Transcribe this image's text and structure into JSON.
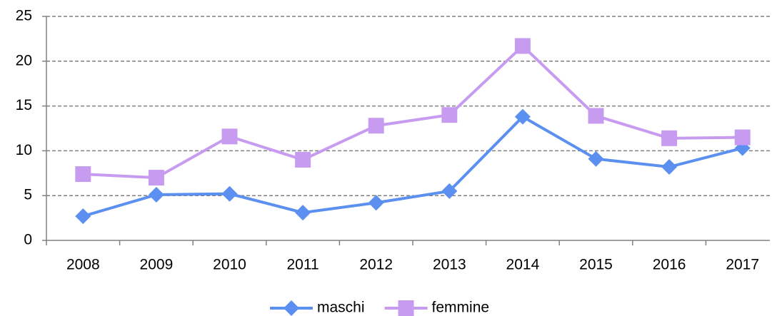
{
  "chart_data": {
    "type": "line",
    "categories": [
      "2008",
      "2009",
      "2010",
      "2011",
      "2012",
      "2013",
      "2014",
      "2015",
      "2016",
      "2017"
    ],
    "series": [
      {
        "name": "maschi",
        "color": "#5b8ff0",
        "marker": "diamond",
        "values": [
          2.7,
          5.1,
          5.2,
          3.1,
          4.2,
          5.5,
          13.8,
          9.1,
          8.2,
          10.3
        ]
      },
      {
        "name": "femmine",
        "color": "#c79cf0",
        "marker": "square",
        "values": [
          7.4,
          7.0,
          11.6,
          9.0,
          12.8,
          14.0,
          21.7,
          13.9,
          11.4,
          11.5
        ]
      }
    ],
    "ylim": [
      0,
      25
    ],
    "yticks": [
      0,
      5,
      10,
      15,
      20,
      25
    ],
    "grid": true,
    "legend": "bottom"
  }
}
